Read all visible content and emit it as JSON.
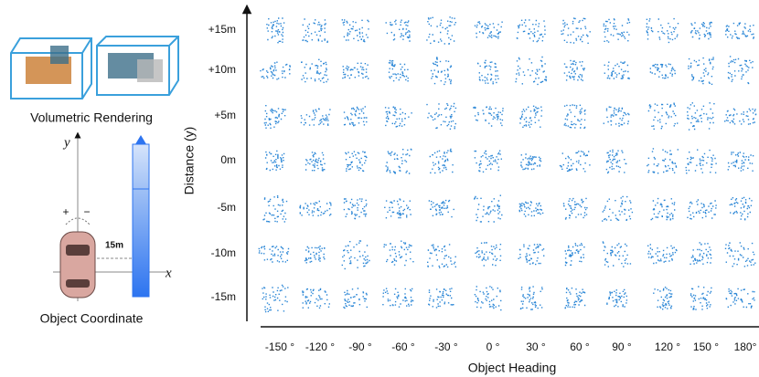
{
  "left": {
    "render_label": "Volumetric Rendering",
    "coord_label": "Object Coordinate",
    "y_axis": "y",
    "x_axis": "x",
    "plus": "+",
    "minus": "−",
    "distance": "15m"
  },
  "grid": {
    "y_title": "Distance (y)",
    "y_labels": [
      "+15m",
      "+10m",
      "+5m",
      "0m",
      "-5m",
      "-10m",
      "-15m"
    ],
    "x_labels": [
      "-150 °",
      "-120 °",
      "-90 °",
      "-60 °",
      "-30 °",
      "0 °",
      "30 °",
      "60 °",
      "90 °",
      "120 °",
      "150 °",
      "180°"
    ],
    "x_title": "Object Heading"
  }
}
